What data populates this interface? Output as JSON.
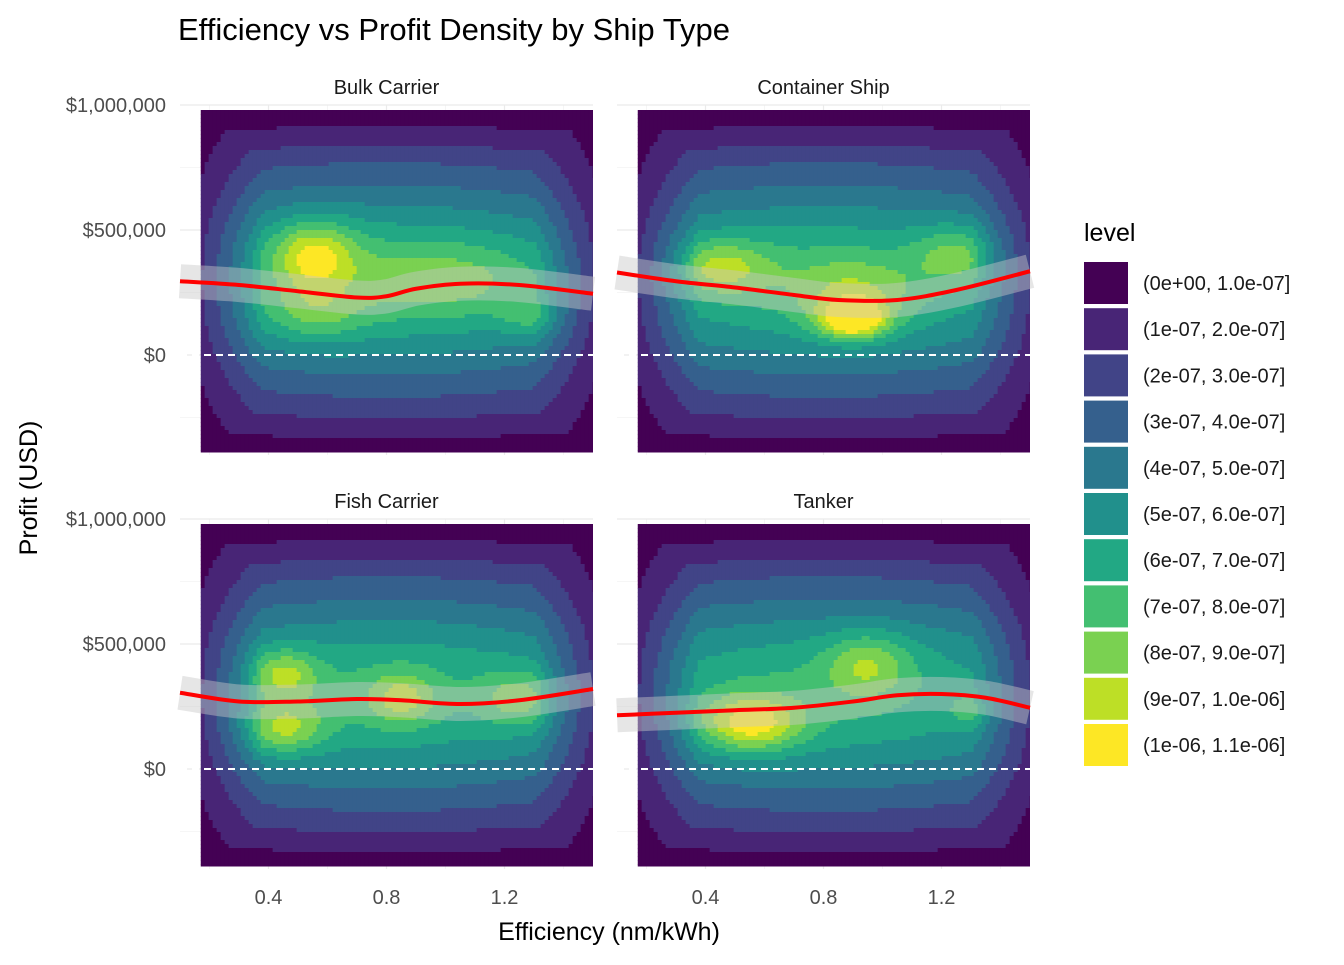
{
  "chart_data": {
    "type": "heatmap",
    "subtype": "faceted 2D density contour with smoothed trend line",
    "title": "Efficiency vs Profit Density by Ship Type",
    "xlabel": "Efficiency (nm/kWh)",
    "ylabel": "Profit (USD)",
    "xlim": [
      0.1,
      1.5
    ],
    "ylim": [
      -400000,
      1000000
    ],
    "x_ticks": [
      {
        "value": 0.4,
        "label": "0.4"
      },
      {
        "value": 0.8,
        "label": "0.8"
      },
      {
        "value": 1.2,
        "label": "1.2"
      }
    ],
    "y_ticks": [
      {
        "value": 0,
        "label": "$0"
      },
      {
        "value": 500000,
        "label": "$500,000"
      },
      {
        "value": 1000000,
        "label": "$1,000,000"
      }
    ],
    "reference_line": {
      "y": 0,
      "style": "dashed",
      "color": "#ffffff"
    },
    "grid": true,
    "legend": {
      "title": "level",
      "position": "right",
      "entries": [
        {
          "label": "(0e+00, 1.0e-07]",
          "color": "#440154"
        },
        {
          "label": "(1e-07, 2.0e-07]",
          "color": "#482576"
        },
        {
          "label": "(2e-07, 3.0e-07]",
          "color": "#414487"
        },
        {
          "label": "(3e-07, 4.0e-07]",
          "color": "#35608d"
        },
        {
          "label": "(4e-07, 5.0e-07]",
          "color": "#2a788e"
        },
        {
          "label": "(5e-07, 6.0e-07]",
          "color": "#21908c"
        },
        {
          "label": "(6e-07, 7.0e-07]",
          "color": "#22a884"
        },
        {
          "label": "(7e-07, 8.0e-07]",
          "color": "#43bf71"
        },
        {
          "label": "(8e-07, 9.0e-07]",
          "color": "#7ad151"
        },
        {
          "label": "(9e-07, 1.0e-06]",
          "color": "#bddf26"
        },
        {
          "label": "(1e-06, 1.1e-06]",
          "color": "#fde725"
        }
      ]
    },
    "trend_color": "#ff0000",
    "facets": [
      {
        "name": "Bulk Carrier",
        "trend": {
          "x": [
            0.1,
            0.3,
            0.5,
            0.7,
            0.8,
            0.9,
            1.05,
            1.25,
            1.5
          ],
          "y": [
            295000,
            280000,
            255000,
            230000,
            235000,
            265000,
            285000,
            280000,
            245000
          ]
        },
        "peaks": [
          {
            "x": 0.55,
            "y": 400000,
            "sx": 0.1,
            "sy": 100000,
            "w": 0.36
          },
          {
            "x": 0.55,
            "y": 160000,
            "sx": 0.12,
            "sy": 80000,
            "w": 0.18
          },
          {
            "x": 1.0,
            "y": 300000,
            "sx": 0.25,
            "sy": 110000,
            "w": 0.16
          },
          {
            "x": 1.3,
            "y": 150000,
            "sx": 0.08,
            "sy": 55000,
            "w": 0.14
          }
        ]
      },
      {
        "name": "Container Ship",
        "trend": {
          "x": [
            0.1,
            0.3,
            0.5,
            0.7,
            0.85,
            1.05,
            1.25,
            1.5
          ],
          "y": [
            330000,
            295000,
            270000,
            240000,
            220000,
            220000,
            260000,
            335000
          ]
        },
        "peaks": [
          {
            "x": 0.9,
            "y": 140000,
            "sx": 0.08,
            "sy": 55000,
            "w": 0.5
          },
          {
            "x": 0.45,
            "y": 350000,
            "sx": 0.12,
            "sy": 80000,
            "w": 0.28
          },
          {
            "x": 0.9,
            "y": 250000,
            "sx": 0.15,
            "sy": 100000,
            "w": 0.2
          },
          {
            "x": 1.25,
            "y": 400000,
            "sx": 0.1,
            "sy": 85000,
            "w": 0.22
          }
        ]
      },
      {
        "name": "Fish Carrier",
        "trend": {
          "x": [
            0.1,
            0.3,
            0.5,
            0.7,
            0.85,
            1.05,
            1.25,
            1.5
          ],
          "y": [
            305000,
            270000,
            270000,
            280000,
            275000,
            260000,
            275000,
            320000
          ]
        },
        "peaks": [
          {
            "x": 0.45,
            "y": 160000,
            "sx": 0.1,
            "sy": 75000,
            "w": 0.3
          },
          {
            "x": 0.45,
            "y": 380000,
            "sx": 0.08,
            "sy": 70000,
            "w": 0.28
          },
          {
            "x": 0.85,
            "y": 280000,
            "sx": 0.08,
            "sy": 75000,
            "w": 0.24
          },
          {
            "x": 1.25,
            "y": 280000,
            "sx": 0.09,
            "sy": 80000,
            "w": 0.22
          }
        ]
      },
      {
        "name": "Tanker",
        "trend": {
          "x": [
            0.1,
            0.3,
            0.5,
            0.7,
            0.9,
            1.05,
            1.2,
            1.35,
            1.5
          ],
          "y": [
            215000,
            225000,
            235000,
            245000,
            270000,
            295000,
            300000,
            285000,
            245000
          ]
        },
        "peaks": [
          {
            "x": 0.55,
            "y": 180000,
            "sx": 0.12,
            "sy": 80000,
            "w": 0.42
          },
          {
            "x": 0.95,
            "y": 420000,
            "sx": 0.1,
            "sy": 90000,
            "w": 0.24
          },
          {
            "x": 1.3,
            "y": 230000,
            "sx": 0.05,
            "sy": 45000,
            "w": 0.16
          }
        ]
      }
    ]
  }
}
